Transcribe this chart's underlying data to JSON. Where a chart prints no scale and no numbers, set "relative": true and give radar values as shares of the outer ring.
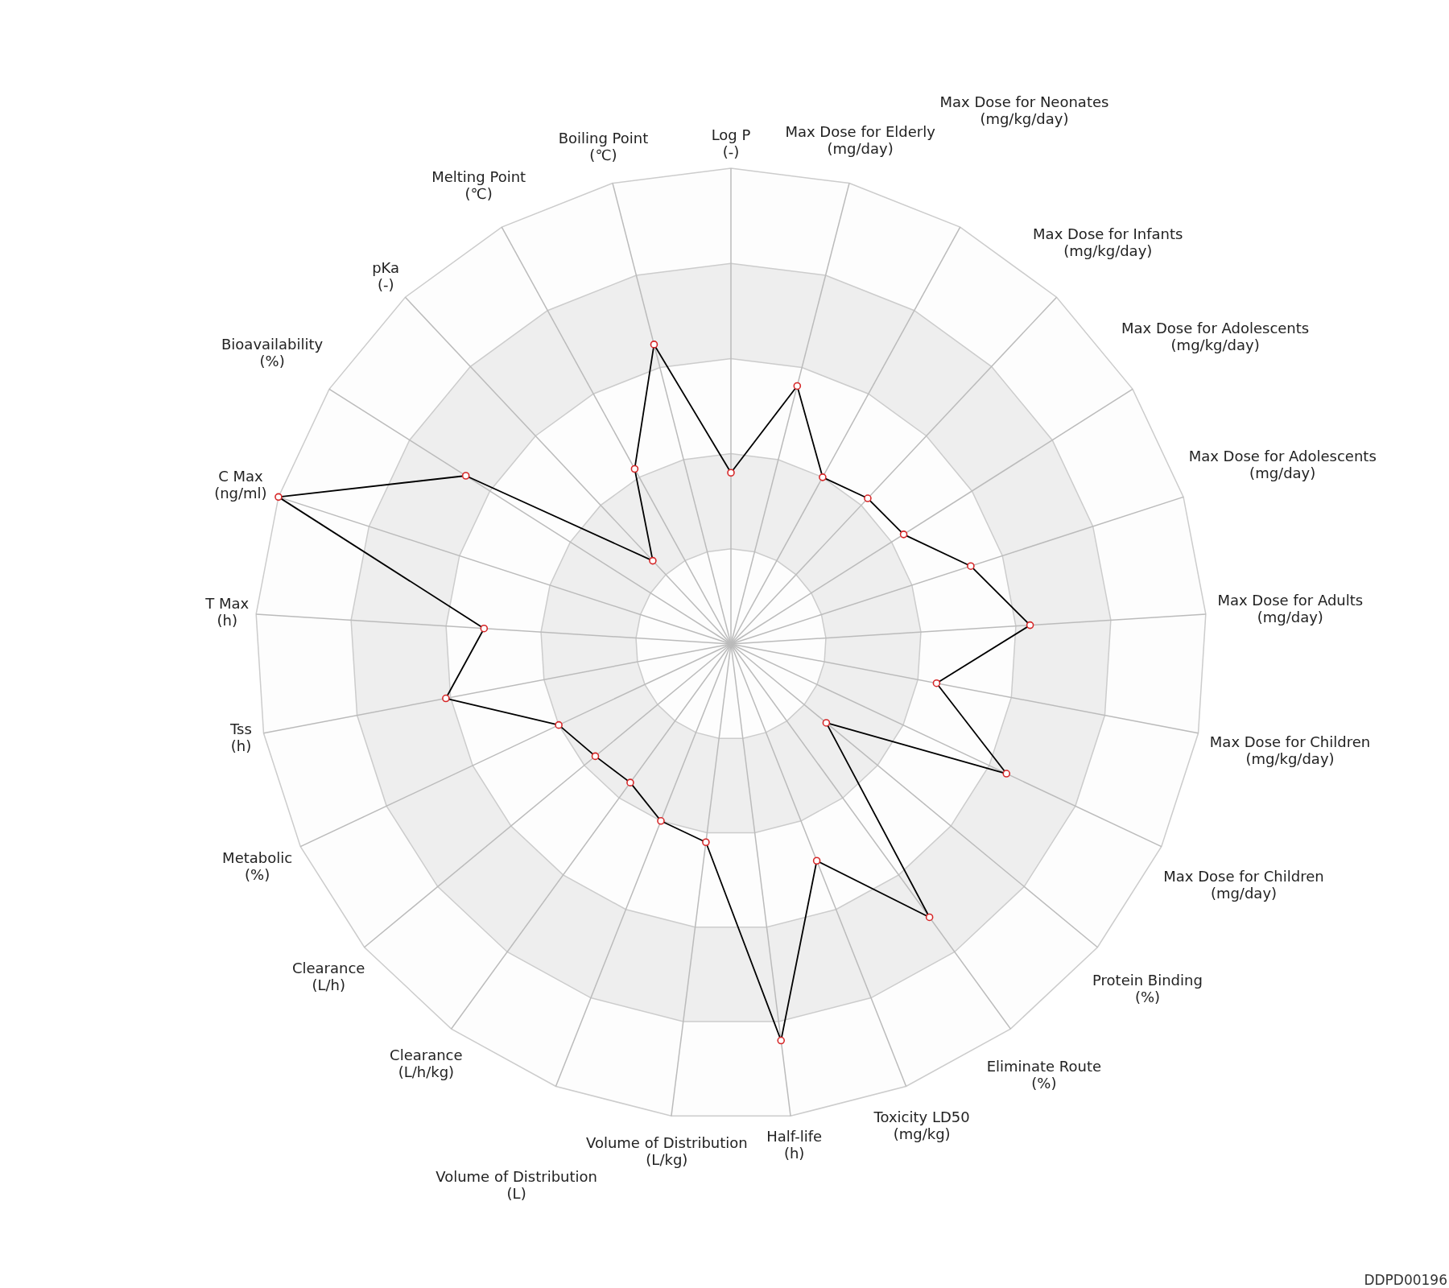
{
  "chart_data": {
    "type": "radar",
    "relative": true,
    "grid": true,
    "marker": "circle",
    "line_style": "solid",
    "categories": [
      "Log P\n(-)",
      "Max Dose for Elderly\n(mg/day)",
      "Max Dose for Neonates\n(mg/kg/day)",
      "Max Dose for Infants\n(mg/kg/day)",
      "Max Dose for Adolescents\n(mg/kg/day)",
      "Max Dose for Adolescents\n(mg/day)",
      "Max Dose for Adults\n(mg/day)",
      "Max Dose for Children\n(mg/kg/day)",
      "Max Dose for Children\n(mg/day)",
      "Protein Binding\n(%)",
      "Eliminate Route\n(%)",
      "Toxicity LD50\n(mg/kg)",
      "Half-life\n(h)",
      "Volume of Distribution\n(L/kg)",
      "Volume of Distribution\n(L)",
      "Clearance\n(L/h/kg)",
      "Clearance\n(L/h)",
      "Metabolic\n(%)",
      "Tss\n(h)",
      "T Max\n(h)",
      "C Max\n(ng/ml)",
      "Bioavailability\n(%)",
      "pKa\n(-)",
      "Melting Point\n(℃)",
      "Boiling Point\n(℃)"
    ],
    "series": [
      {
        "color": "#000000",
        "values": [
          0.36,
          0.56,
          0.4,
          0.42,
          0.43,
          0.53,
          0.63,
          0.44,
          0.64,
          0.26,
          0.71,
          0.49,
          0.84,
          0.42,
          0.4,
          0.36,
          0.37,
          0.4,
          0.61,
          0.52,
          1.0,
          0.66,
          0.24,
          0.42,
          0.65
        ]
      }
    ],
    "annotations": [
      "DDPD00196"
    ]
  }
}
